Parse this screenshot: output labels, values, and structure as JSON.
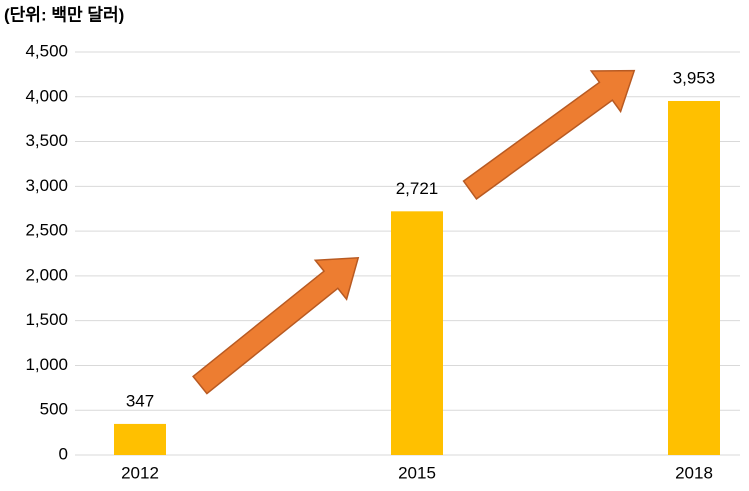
{
  "chart_data": {
    "type": "bar",
    "title": "(단위: 백만 달러)",
    "categories": [
      "2012",
      "2015",
      "2018"
    ],
    "values": [
      347,
      2721,
      3953
    ],
    "value_labels": [
      "347",
      "2,721",
      "3,953"
    ],
    "color": "#ffc000",
    "ylim": [
      0,
      4500
    ],
    "yticks": [
      0,
      500,
      {
        "value": 1000,
        "label": "1,000"
      },
      {
        "value": 1500,
        "label": "1,500"
      },
      {
        "value": 2000,
        "label": "2,000"
      },
      {
        "value": 2500,
        "label": "2,500"
      },
      {
        "value": 3000,
        "label": "3,000"
      },
      {
        "value": 3500,
        "label": "3,500"
      },
      {
        "value": 4000,
        "label": "4,000"
      },
      {
        "value": 4500,
        "label": "4,500"
      }
    ],
    "grid": true
  }
}
